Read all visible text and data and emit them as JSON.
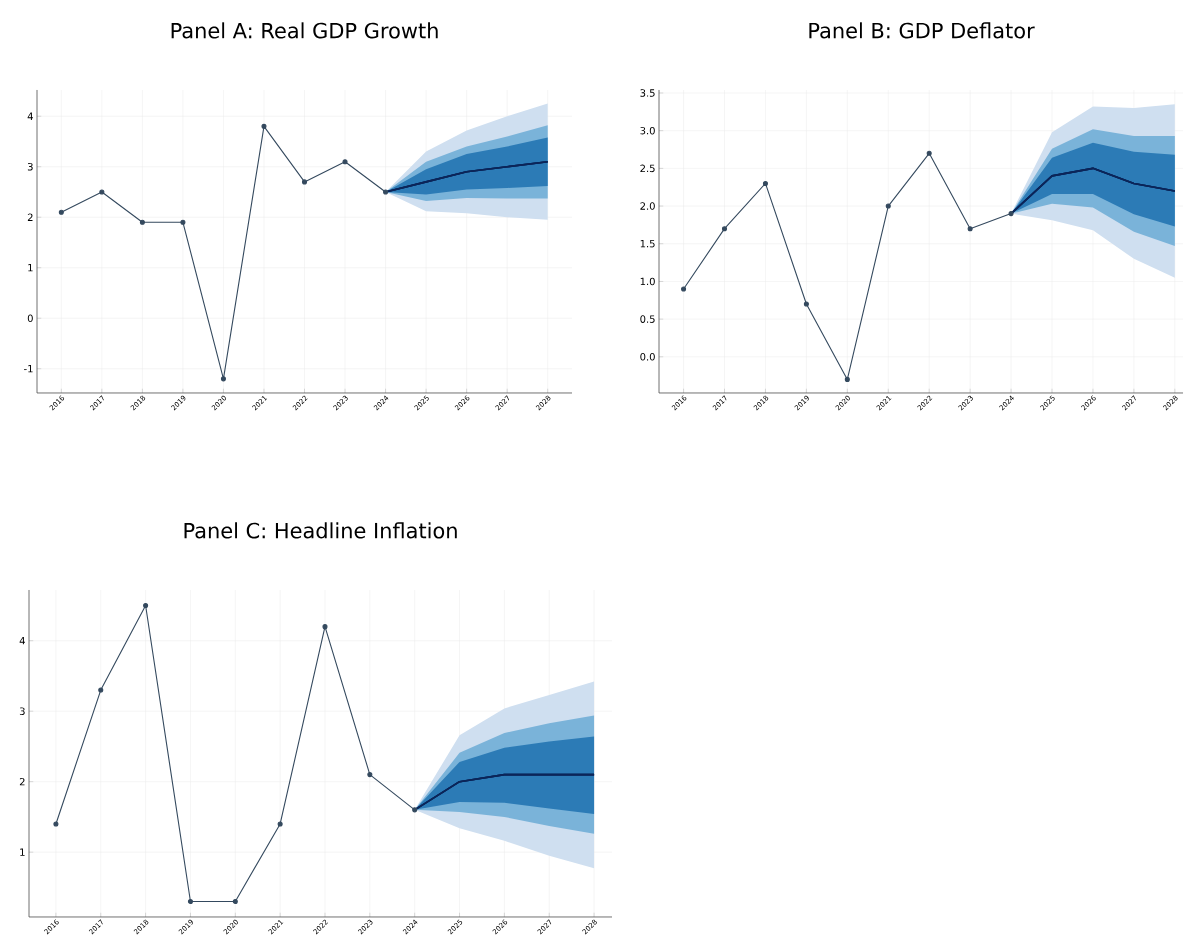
{
  "chart_data": [
    {
      "type": "line",
      "title": "Panel A: Real GDP Growth",
      "xlim": [
        2015.4,
        2028.6
      ],
      "xticks": [
        2016,
        2017,
        2018,
        2019,
        2020,
        2021,
        2022,
        2023,
        2024,
        2025,
        2026,
        2027,
        2028
      ],
      "ylim": [
        -1.48,
        4.52
      ],
      "yticks": [
        -1,
        0,
        1,
        2,
        3,
        4
      ],
      "grid": true,
      "series": [
        {
          "color": "#34495e",
          "marker": "circle",
          "x": [
            2016,
            2017,
            2018,
            2019,
            2020,
            2021,
            2022,
            2023,
            2024
          ],
          "values": [
            2.1,
            2.5,
            1.9,
            1.9,
            -1.2,
            3.8,
            2.7,
            3.1,
            2.5
          ]
        },
        {
          "type": "line",
          "color": "#0b2559",
          "x": [
            2024,
            2025,
            2026,
            2027,
            2028
          ],
          "values": [
            2.5,
            2.7,
            2.9,
            3.0,
            3.1
          ],
          "lower": [
            2.5,
            2.12,
            2.08,
            2.0,
            1.95
          ],
          "upper": [
            2.5,
            3.3,
            3.72,
            4.0,
            4.25
          ]
        },
        {
          "type": "line",
          "color": "#0b2559",
          "x": [
            2024,
            2025,
            2026,
            2027,
            2028
          ],
          "values": [
            2.5,
            2.7,
            2.9,
            3.0,
            3.1
          ],
          "lower": [
            2.5,
            2.32,
            2.38,
            2.37,
            2.37
          ],
          "upper": [
            2.5,
            3.1,
            3.4,
            3.6,
            3.82
          ]
        },
        {
          "type": "line",
          "color": "#0b2559",
          "x": [
            2024,
            2025,
            2026,
            2027,
            2028
          ],
          "values": [
            2.5,
            2.7,
            2.9,
            3.0,
            3.1
          ],
          "lower": [
            2.5,
            2.45,
            2.55,
            2.58,
            2.62
          ],
          "upper": [
            2.5,
            2.95,
            3.25,
            3.4,
            3.58
          ]
        }
      ]
    },
    {
      "type": "line",
      "title": "Panel B: GDP Deflator",
      "xlim": [
        2015.4,
        2028.2
      ],
      "xticks": [
        2016,
        2017,
        2018,
        2019,
        2020,
        2021,
        2022,
        2023,
        2024,
        2025,
        2026,
        2027,
        2028
      ],
      "ylim": [
        -0.48,
        3.54
      ],
      "yticks": [
        {
          "value": 0,
          "label": "0.0"
        },
        {
          "value": 0.5,
          "label": "0.5"
        },
        {
          "value": 1,
          "label": "1.0"
        },
        {
          "value": 1.5,
          "label": "1.5"
        },
        {
          "value": 2,
          "label": "2.0"
        },
        {
          "value": 2.5,
          "label": "2.5"
        },
        {
          "value": 3,
          "label": "3.0"
        },
        {
          "value": 3.5,
          "label": "3.5"
        }
      ],
      "grid": true,
      "series": [
        {
          "color": "#34495e",
          "marker": "circle",
          "x": [
            2016,
            2017,
            2018,
            2019,
            2020,
            2021,
            2022,
            2023,
            2024
          ],
          "values": [
            0.9,
            1.7,
            2.3,
            0.7,
            -0.3,
            2.0,
            2.7,
            1.7,
            1.9
          ]
        },
        {
          "type": "line",
          "color": "#0b2559",
          "x": [
            2024,
            2025,
            2026,
            2027,
            2028
          ],
          "values": [
            1.9,
            2.4,
            2.5,
            2.3,
            2.2
          ],
          "lower": [
            1.9,
            1.81,
            1.68,
            1.3,
            1.05
          ],
          "upper": [
            1.9,
            2.98,
            3.32,
            3.3,
            3.35
          ]
        },
        {
          "type": "line",
          "color": "#0b2559",
          "x": [
            2024,
            2025,
            2026,
            2027,
            2028
          ],
          "values": [
            1.9,
            2.4,
            2.5,
            2.3,
            2.2
          ],
          "lower": [
            1.9,
            2.03,
            1.98,
            1.66,
            1.47
          ],
          "upper": [
            1.9,
            2.76,
            3.02,
            2.93,
            2.93
          ]
        },
        {
          "type": "line",
          "color": "#0b2559",
          "x": [
            2024,
            2025,
            2026,
            2027,
            2028
          ],
          "values": [
            1.9,
            2.4,
            2.5,
            2.3,
            2.2
          ],
          "lower": [
            1.9,
            2.16,
            2.16,
            1.89,
            1.73
          ],
          "upper": [
            1.9,
            2.64,
            2.84,
            2.72,
            2.68
          ]
        }
      ]
    },
    {
      "type": "line",
      "title": "Panel C: Headline Inflation",
      "xlim": [
        2015.4,
        2028.4
      ],
      "xticks": [
        2016,
        2017,
        2018,
        2019,
        2020,
        2021,
        2022,
        2023,
        2024,
        2025,
        2026,
        2027,
        2028
      ],
      "ylim": [
        0.08,
        4.72
      ],
      "yticks": [
        1,
        2,
        3,
        4
      ],
      "grid": true,
      "series": [
        {
          "color": "#34495e",
          "marker": "circle",
          "x": [
            2016,
            2017,
            2018,
            2019,
            2020,
            2021,
            2022,
            2023,
            2024
          ],
          "values": [
            1.4,
            3.3,
            4.5,
            0.3,
            0.3,
            1.4,
            4.2,
            2.1,
            1.6
          ]
        },
        {
          "type": "line",
          "color": "#0b2559",
          "x": [
            2024,
            2025,
            2026,
            2027,
            2028
          ],
          "values": [
            1.6,
            2.0,
            2.1,
            2.1,
            2.1
          ],
          "lower": [
            1.6,
            1.34,
            1.16,
            0.95,
            0.77
          ],
          "upper": [
            1.6,
            2.66,
            3.04,
            3.23,
            3.42
          ]
        },
        {
          "type": "line",
          "color": "#0b2559",
          "x": [
            2024,
            2025,
            2026,
            2027,
            2028
          ],
          "values": [
            1.6,
            2.0,
            2.1,
            2.1,
            2.1
          ],
          "lower": [
            1.6,
            1.57,
            1.5,
            1.37,
            1.26
          ],
          "upper": [
            1.6,
            2.41,
            2.69,
            2.83,
            2.94
          ]
        },
        {
          "type": "line",
          "color": "#0b2559",
          "x": [
            2024,
            2025,
            2026,
            2027,
            2028
          ],
          "values": [
            1.6,
            2.0,
            2.1,
            2.1,
            2.1
          ],
          "lower": [
            1.6,
            1.71,
            1.7,
            1.62,
            1.54
          ],
          "upper": [
            1.6,
            2.28,
            2.48,
            2.57,
            2.64
          ]
        }
      ]
    }
  ]
}
